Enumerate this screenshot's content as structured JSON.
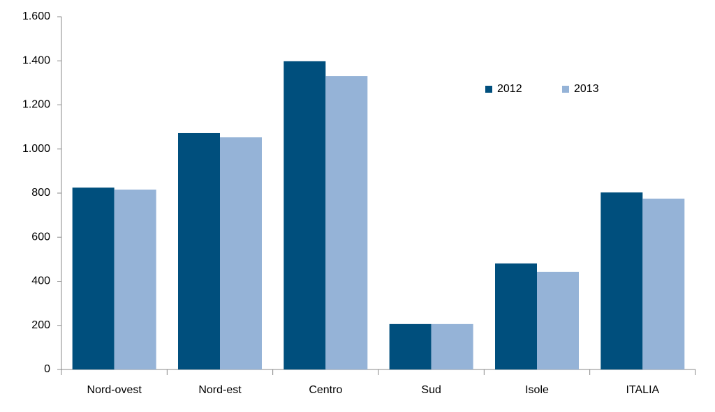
{
  "chart_data": {
    "type": "bar",
    "categories": [
      "Nord-ovest",
      "Nord-est",
      "Centro",
      "Sud",
      "Isole",
      "ITALIA"
    ],
    "series": [
      {
        "name": "2012",
        "color": "#004f7d",
        "values": [
          825,
          1072,
          1398,
          206,
          481,
          803
        ]
      },
      {
        "name": "2013",
        "color": "#95b3d7",
        "values": [
          816,
          1053,
          1331,
          206,
          443,
          775
        ]
      }
    ],
    "ylim": [
      0,
      1600
    ],
    "yticks": [
      0,
      200,
      400,
      600,
      800,
      {
        "value": 1000,
        "label": "1.000"
      },
      {
        "value": 1200,
        "label": "1.200"
      },
      {
        "value": 1400,
        "label": "1.400"
      },
      {
        "value": 1600,
        "label": "1.600"
      }
    ],
    "grid": false,
    "legend": "top-right"
  }
}
